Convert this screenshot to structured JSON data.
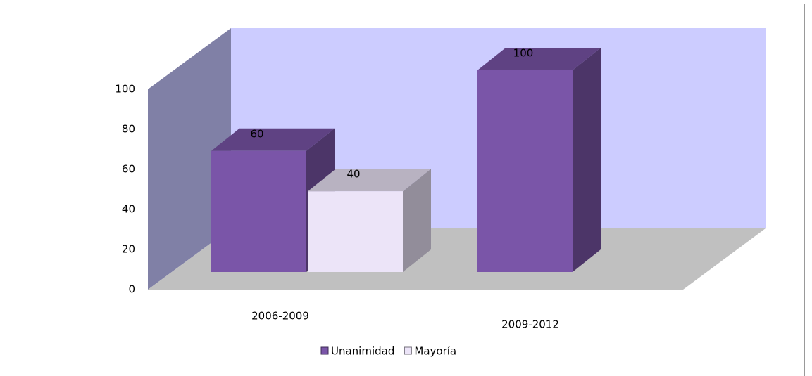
{
  "chart_data": {
    "type": "bar3d",
    "categories": [
      "2006-2009",
      "2009-2012"
    ],
    "series": [
      {
        "name": "Unanimidad",
        "color": "#7a55a8",
        "values": [
          60,
          100
        ]
      },
      {
        "name": "Mayoría",
        "color": "#ece4f8",
        "values": [
          40,
          null
        ]
      }
    ],
    "ylim": [
      0,
      100
    ],
    "yticks": [
      0,
      20,
      40,
      60,
      80,
      100
    ],
    "legend": "bottom"
  }
}
